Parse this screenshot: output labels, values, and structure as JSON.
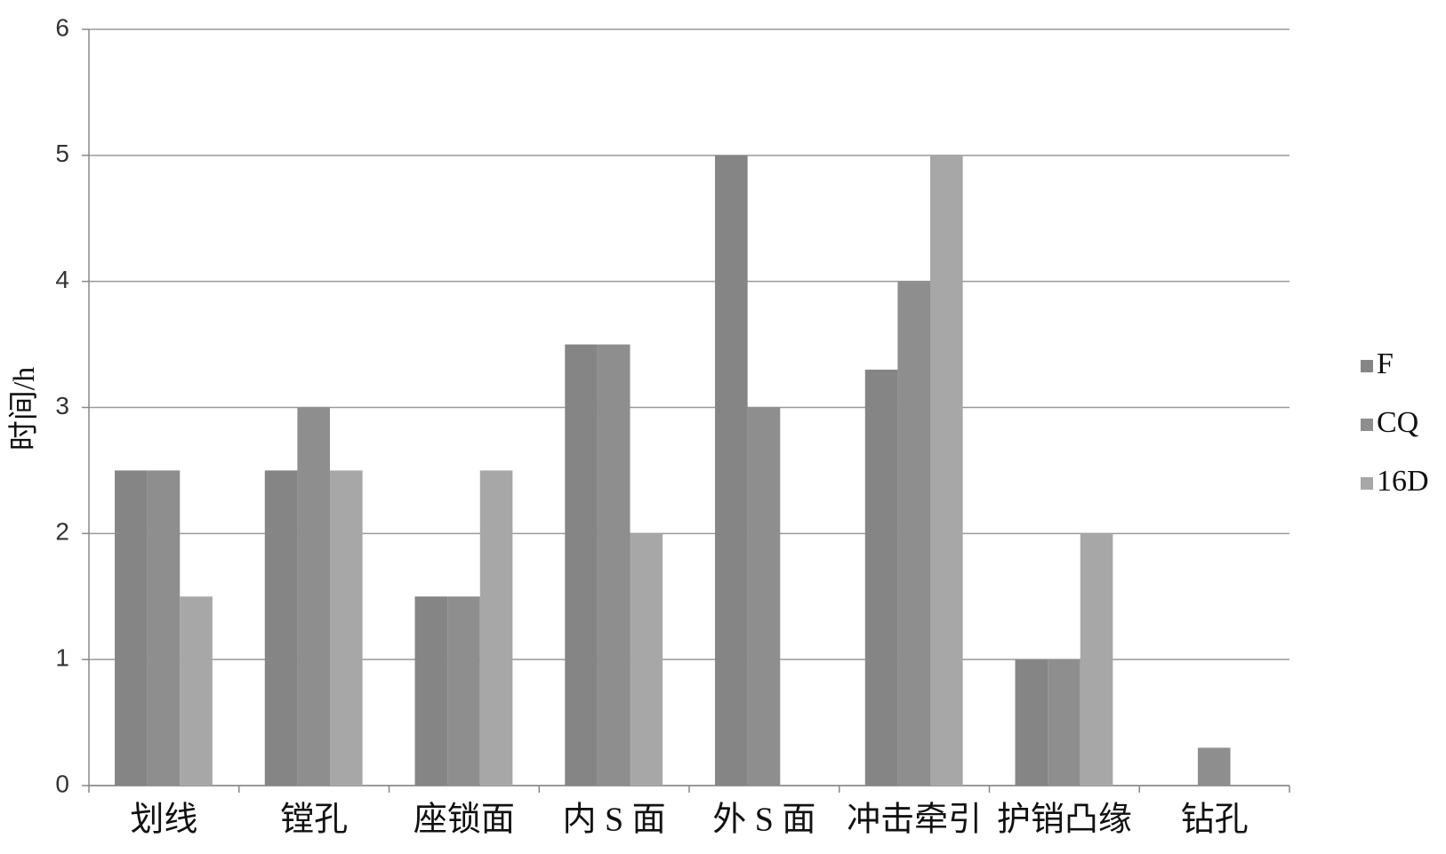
{
  "chart_data": {
    "type": "bar",
    "y_label": "时间/h",
    "categories": [
      "划线",
      "镗孔",
      "座锁面",
      "内 S 面",
      "外 S 面",
      "冲击牵引",
      "护销凸缘",
      "钻孔"
    ],
    "series": [
      {
        "name": "F",
        "color": "#858585",
        "values": [
          2.5,
          2.5,
          1.5,
          3.5,
          5,
          3.3,
          1,
          0
        ]
      },
      {
        "name": "CQ",
        "color": "#8e8e8e",
        "values": [
          2.5,
          3,
          1.5,
          3.5,
          3,
          4,
          1,
          0.3
        ]
      },
      {
        "name": "16D",
        "color": "#a7a7a7",
        "values": [
          1.5,
          2.5,
          2.5,
          2,
          0,
          5,
          2,
          0
        ]
      }
    ],
    "ylim": [
      0,
      6
    ],
    "yticks": [
      0,
      1,
      2,
      3,
      4,
      5,
      6
    ],
    "grid": true,
    "legend": "right"
  }
}
